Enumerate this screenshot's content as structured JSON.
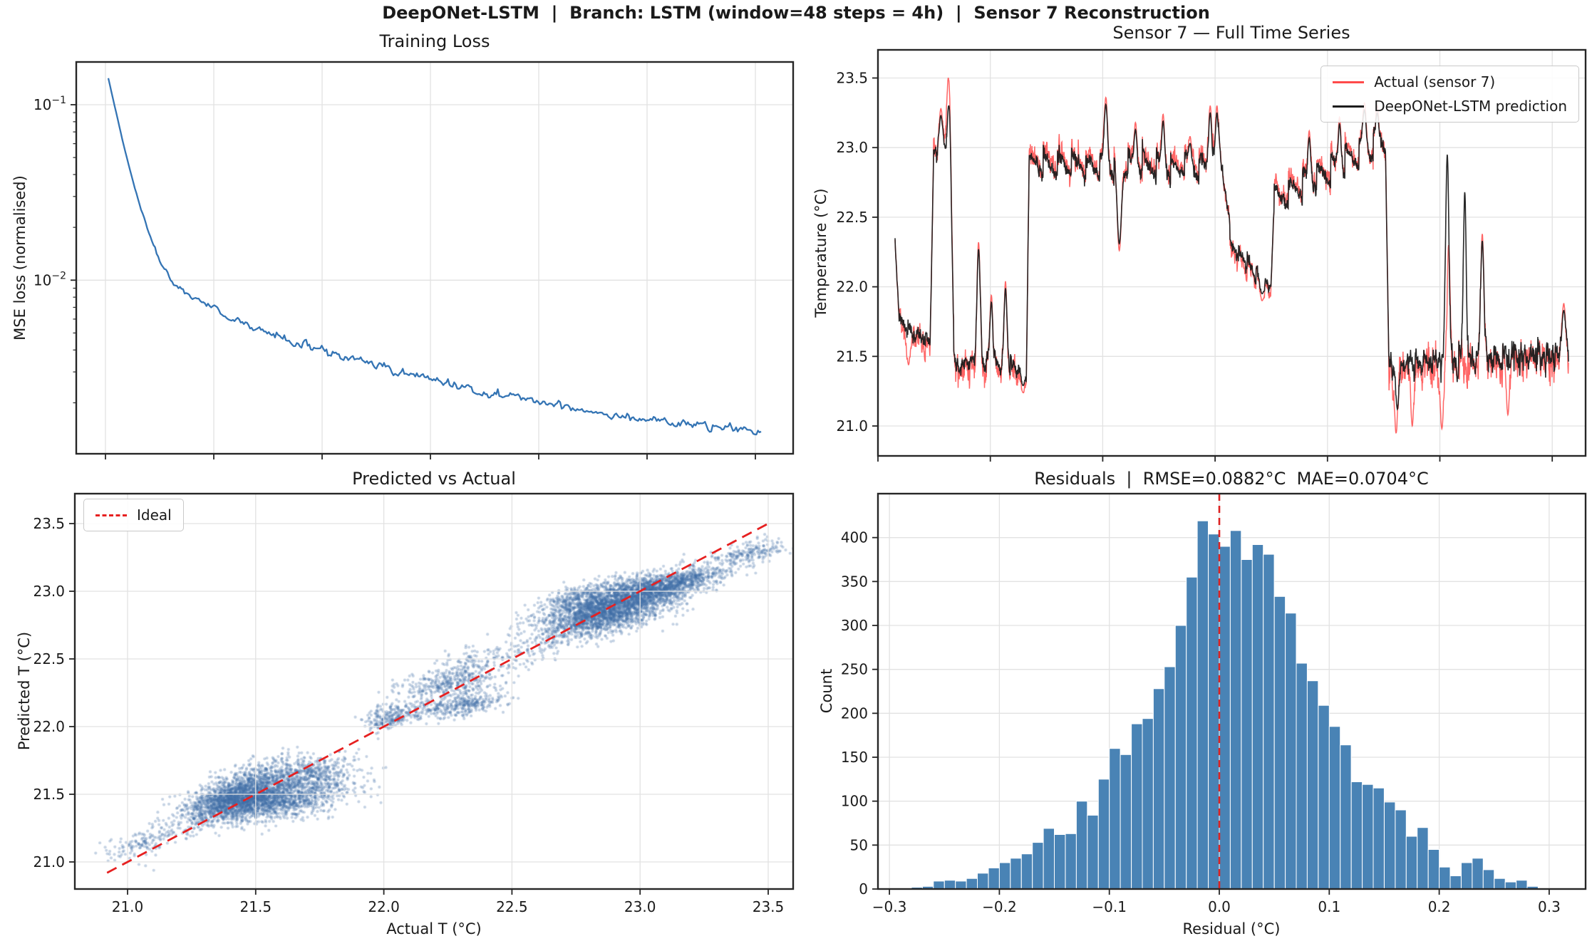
{
  "suptitle": "DeepONet-LSTM  |  Branch: LSTM (window=48 steps = 4h)  |  Sensor 7 Reconstruction",
  "colors": {
    "loss_line": "#3474b4",
    "actual_red": "#ff4a4a",
    "prediction_black": "#1c1c1c",
    "ideal_red": "#e62020",
    "vline_red": "#dd2222",
    "hist_bar": "#4983b5",
    "hist_bar_edge": "#ffffff",
    "scatter_point": "#3e6ea5",
    "grid": "#e2e2e2",
    "spine": "#262626",
    "text": "#1a1a1a"
  },
  "panels": {
    "training_loss": {
      "title": "Training Loss",
      "ylabel": "MSE loss (normalised)",
      "y_major_ticks": [
        {
          "base": "10",
          "exp": "−1",
          "value": 0.1
        },
        {
          "base": "10",
          "exp": "−2",
          "value": 0.01
        }
      ],
      "x_ticks_unlabeled_count": 7
    },
    "time_series": {
      "title": "Sensor 7 — Full Time Series",
      "ylabel": "Temperature (°C)",
      "legend": [
        "Actual (sensor 7)",
        "DeepONet-LSTM prediction"
      ],
      "y_tick_labels": [
        "21.0",
        "21.5",
        "22.0",
        "22.5",
        "23.0",
        "23.5"
      ],
      "y_tick_values": [
        21.0,
        21.5,
        22.0,
        22.5,
        23.0,
        23.5
      ],
      "x_ticks_unlabeled_count": 7
    },
    "pred_vs_actual": {
      "title": "Predicted vs Actual",
      "xlabel": "Actual T (°C)",
      "ylabel": "Predicted T (°C)",
      "legend": [
        "Ideal"
      ],
      "x_tick_labels": [
        "21.0",
        "21.5",
        "22.0",
        "22.5",
        "23.0",
        "23.5"
      ],
      "x_tick_values": [
        21.0,
        21.5,
        22.0,
        22.5,
        23.0,
        23.5
      ],
      "y_tick_labels": [
        "21.0",
        "21.5",
        "22.0",
        "22.5",
        "23.0",
        "23.5"
      ],
      "y_tick_values": [
        21.0,
        21.5,
        22.0,
        22.5,
        23.0,
        23.5
      ]
    },
    "residuals": {
      "title": "Residuals  |  RMSE=0.0882°C  MAE=0.0704°C",
      "rmse_label": "RMSE=0.0882°C",
      "mae_label": "MAE=0.0704°C",
      "xlabel": "Residual (°C)",
      "ylabel": "Count",
      "x_tick_labels": [
        "−0.3",
        "−0.2",
        "−0.1",
        "0.0",
        "0.1",
        "0.2",
        "0.3"
      ],
      "x_tick_values": [
        -0.3,
        -0.2,
        -0.1,
        0.0,
        0.1,
        0.2,
        0.3
      ],
      "y_tick_labels": [
        "0",
        "50",
        "100",
        "150",
        "200",
        "250",
        "300",
        "350",
        "400"
      ],
      "y_tick_values": [
        0,
        50,
        100,
        150,
        200,
        250,
        300,
        350,
        400
      ]
    }
  },
  "chart_data": [
    {
      "panel": "training_loss",
      "type": "line",
      "yscale": "log",
      "ylim": [
        0.00102,
        0.175
      ],
      "x": "epoch fraction (x ticks unlabeled)",
      "keypoints": [
        [
          0.0,
          0.142
        ],
        [
          0.008,
          0.105
        ],
        [
          0.016,
          0.078
        ],
        [
          0.024,
          0.058
        ],
        [
          0.032,
          0.044
        ],
        [
          0.04,
          0.034
        ],
        [
          0.048,
          0.027
        ],
        [
          0.056,
          0.022
        ],
        [
          0.064,
          0.018
        ],
        [
          0.072,
          0.0148
        ],
        [
          0.08,
          0.0125
        ],
        [
          0.09,
          0.0108
        ],
        [
          0.1,
          0.0097
        ],
        [
          0.12,
          0.0085
        ],
        [
          0.14,
          0.0076
        ],
        [
          0.16,
          0.0069
        ],
        [
          0.18,
          0.0063
        ],
        [
          0.21,
          0.0056
        ],
        [
          0.25,
          0.0049
        ],
        [
          0.3,
          0.00425
        ],
        [
          0.35,
          0.00375
        ],
        [
          0.4,
          0.00332
        ],
        [
          0.45,
          0.00296
        ],
        [
          0.5,
          0.00268
        ],
        [
          0.55,
          0.00244
        ],
        [
          0.6,
          0.00224
        ],
        [
          0.65,
          0.00206
        ],
        [
          0.7,
          0.00191
        ],
        [
          0.75,
          0.00178
        ],
        [
          0.8,
          0.00167
        ],
        [
          0.85,
          0.00157
        ],
        [
          0.9,
          0.00149
        ],
        [
          0.95,
          0.00141
        ],
        [
          1.0,
          0.00136
        ]
      ]
    },
    {
      "panel": "time_series",
      "type": "line",
      "ylim": [
        20.785,
        23.702
      ],
      "series": [
        {
          "name": "Actual (sensor 7)",
          "color_key": "actual_red"
        },
        {
          "name": "DeepONet-LSTM prediction",
          "color_key": "prediction_black"
        }
      ],
      "segments": [
        [
          0.0,
          0.006,
          22.32,
          21.78,
          0.02,
          0.02,
          0.0,
          1.0,
          0.0
        ],
        [
          0.006,
          0.052,
          21.74,
          21.6,
          0.09,
          0.055,
          0.04,
          0.013,
          -0.02
        ],
        [
          0.052,
          0.057,
          21.6,
          22.88,
          0.03,
          0.03,
          0.0,
          1.0,
          0.0
        ],
        [
          0.057,
          0.08,
          22.92,
          22.96,
          0.09,
          0.06,
          0.05,
          0.011,
          0.02
        ],
        [
          0.08,
          0.087,
          23.3,
          21.7,
          0.05,
          0.04,
          0.0,
          1.0,
          0.0
        ],
        [
          0.087,
          0.195,
          21.46,
          21.43,
          0.1,
          0.06,
          0.05,
          0.012,
          -0.03
        ],
        [
          0.195,
          0.199,
          21.43,
          22.85,
          0.03,
          0.03,
          0.0,
          1.0,
          0.0
        ],
        [
          0.199,
          0.48,
          22.88,
          22.86,
          0.08,
          0.05,
          0.1,
          0.021,
          0.03
        ],
        [
          0.48,
          0.497,
          23.05,
          22.45,
          0.05,
          0.04,
          0.0,
          1.0,
          0.0
        ],
        [
          0.497,
          0.558,
          22.3,
          21.98,
          0.06,
          0.045,
          0.05,
          0.013,
          -0.02
        ],
        [
          0.558,
          0.563,
          21.98,
          22.6,
          0.03,
          0.03,
          0.0,
          1.0,
          0.0
        ],
        [
          0.563,
          0.728,
          22.62,
          23.06,
          0.07,
          0.05,
          0.12,
          0.021,
          0.02
        ],
        [
          0.728,
          0.733,
          23.06,
          21.55,
          0.03,
          0.03,
          0.0,
          1.0,
          0.0
        ],
        [
          0.733,
          1.0,
          21.44,
          21.52,
          0.13,
          0.085,
          0.06,
          0.013,
          -0.04
        ]
      ],
      "spikes": [
        [
          0.02,
          21.44,
          0.004,
          0
        ],
        [
          0.068,
          23.28,
          0.004,
          2
        ],
        [
          0.079,
          23.5,
          0.0035,
          0
        ],
        [
          0.0795,
          23.3,
          0.003,
          1
        ],
        [
          0.124,
          22.32,
          0.0035,
          2
        ],
        [
          0.143,
          21.94,
          0.003,
          2
        ],
        [
          0.164,
          22.04,
          0.003,
          2
        ],
        [
          0.19,
          21.24,
          0.004,
          2
        ],
        [
          0.313,
          23.36,
          0.0035,
          2
        ],
        [
          0.333,
          22.26,
          0.0045,
          2
        ],
        [
          0.357,
          23.18,
          0.003,
          2
        ],
        [
          0.398,
          23.24,
          0.003,
          2
        ],
        [
          0.438,
          23.08,
          0.003,
          2
        ],
        [
          0.468,
          23.3,
          0.0035,
          2
        ],
        [
          0.478,
          23.3,
          0.003,
          2
        ],
        [
          0.545,
          21.9,
          0.004,
          2
        ],
        [
          0.615,
          23.12,
          0.003,
          2
        ],
        [
          0.66,
          23.22,
          0.003,
          2
        ],
        [
          0.697,
          23.32,
          0.0035,
          2
        ],
        [
          0.716,
          23.3,
          0.003,
          2
        ],
        [
          0.744,
          20.95,
          0.0035,
          0
        ],
        [
          0.746,
          21.12,
          0.003,
          1
        ],
        [
          0.768,
          21.0,
          0.003,
          0
        ],
        [
          0.812,
          20.98,
          0.0035,
          0
        ],
        [
          0.82,
          22.95,
          0.0035,
          1
        ],
        [
          0.822,
          22.3,
          0.003,
          0
        ],
        [
          0.846,
          22.68,
          0.003,
          1
        ],
        [
          0.872,
          22.38,
          0.0035,
          2
        ],
        [
          0.91,
          21.08,
          0.003,
          0
        ],
        [
          0.993,
          21.88,
          0.004,
          2
        ]
      ]
    },
    {
      "panel": "pred_vs_actual",
      "type": "scatter",
      "xlim": [
        20.794,
        23.603
      ],
      "ylim": [
        20.8,
        23.721
      ],
      "ideal_line": {
        "x0": 20.92,
        "y0": 20.92,
        "x1": 23.5,
        "y1": 23.5
      },
      "clusters": [
        [
          21.42,
          21.46,
          0.095,
          0.075,
          1500
        ],
        [
          21.6,
          21.47,
          0.13,
          0.085,
          1300
        ],
        [
          21.52,
          21.63,
          0.1,
          0.07,
          450
        ],
        [
          21.73,
          21.66,
          0.08,
          0.06,
          280
        ],
        [
          21.05,
          21.13,
          0.06,
          0.045,
          55
        ],
        [
          22.02,
          22.07,
          0.05,
          0.05,
          150
        ],
        [
          22.3,
          22.16,
          0.09,
          0.05,
          350
        ],
        [
          22.26,
          22.33,
          0.09,
          0.07,
          380
        ],
        [
          22.33,
          22.5,
          0.07,
          0.06,
          60
        ],
        [
          22.85,
          22.84,
          0.12,
          0.085,
          2000
        ],
        [
          23.03,
          23.0,
          0.1,
          0.07,
          1300
        ],
        [
          22.79,
          22.96,
          0.08,
          0.06,
          300
        ],
        [
          23.18,
          23.08,
          0.07,
          0.05,
          280
        ],
        [
          23.43,
          23.3,
          0.06,
          0.04,
          70
        ]
      ],
      "trails": [
        [
          20.97,
          21.07,
          21.32,
          21.34,
          160,
          0.05
        ],
        [
          21.95,
          22.02,
          22.16,
          22.12,
          110,
          0.035
        ],
        [
          22.4,
          22.42,
          22.74,
          22.72,
          150,
          0.06
        ],
        [
          23.24,
          23.12,
          23.52,
          23.34,
          200,
          0.045
        ]
      ]
    },
    {
      "panel": "residuals",
      "type": "histogram",
      "bin_start": -0.29,
      "bin_width": 0.01,
      "counts": [
        1,
        2,
        3,
        9,
        10,
        9,
        12,
        18,
        24,
        30,
        35,
        40,
        53,
        69,
        62,
        63,
        100,
        84,
        125,
        160,
        153,
        188,
        194,
        228,
        253,
        300,
        355,
        419,
        404,
        390,
        408,
        375,
        392,
        381,
        333,
        314,
        257,
        237,
        209,
        185,
        164,
        122,
        119,
        115,
        99,
        90,
        60,
        70,
        45,
        25,
        15,
        30,
        35,
        22,
        12,
        8,
        10,
        3
      ],
      "vline_x": 0.0,
      "xlim": [
        -0.31,
        0.333
      ],
      "ylim": [
        0,
        450
      ],
      "rmse": 0.0882,
      "mae": 0.0704
    }
  ]
}
